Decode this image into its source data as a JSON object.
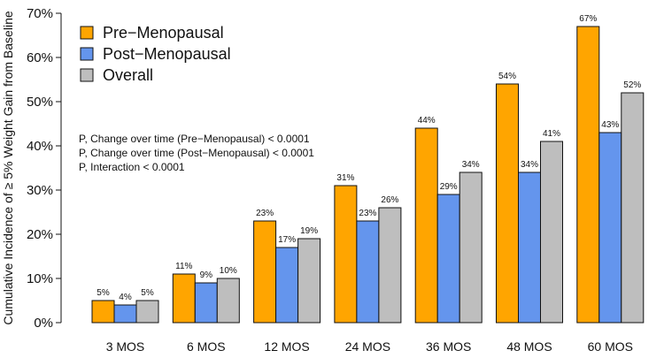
{
  "chart_data": {
    "type": "bar",
    "title": "",
    "xlabel": "",
    "ylabel": "Cumulative Incidence of ≥ 5% Weight Gain from Baseline",
    "ylim": [
      0,
      70
    ],
    "yticks": [
      0,
      10,
      20,
      30,
      40,
      50,
      60,
      70
    ],
    "ytick_labels": [
      "0%",
      "10%",
      "20%",
      "30%",
      "40%",
      "50%",
      "60%",
      "70%"
    ],
    "categories": [
      "3 MOS",
      "6 MOS",
      "12 MOS",
      "24 MOS",
      "36 MOS",
      "48 MOS",
      "60 MOS"
    ],
    "series": [
      {
        "name": "Pre−Menopausal",
        "color": "#FFA500",
        "values": [
          5,
          11,
          23,
          31,
          44,
          54,
          67
        ],
        "labels": [
          "5%",
          "11%",
          "23%",
          "31%",
          "44%",
          "54%",
          "67%"
        ]
      },
      {
        "name": "Post−Menopausal",
        "color": "#6495ED",
        "values": [
          4,
          9,
          17,
          23,
          29,
          34,
          43
        ],
        "labels": [
          "4%",
          "9%",
          "17%",
          "23%",
          "29%",
          "34%",
          "43%"
        ]
      },
      {
        "name": "Overall",
        "color": "#BEBEBE",
        "values": [
          5,
          10,
          19,
          26,
          34,
          41,
          52
        ],
        "labels": [
          "5%",
          "10%",
          "19%",
          "26%",
          "34%",
          "41%",
          "52%"
        ]
      }
    ],
    "legend_position": "top-left",
    "annotations": [
      "P, Change over time (Pre−Menopausal) < 0.0001",
      "P, Change over time (Post−Menopausal) < 0.0001",
      "P, Interaction < 0.0001"
    ],
    "grid": false
  }
}
